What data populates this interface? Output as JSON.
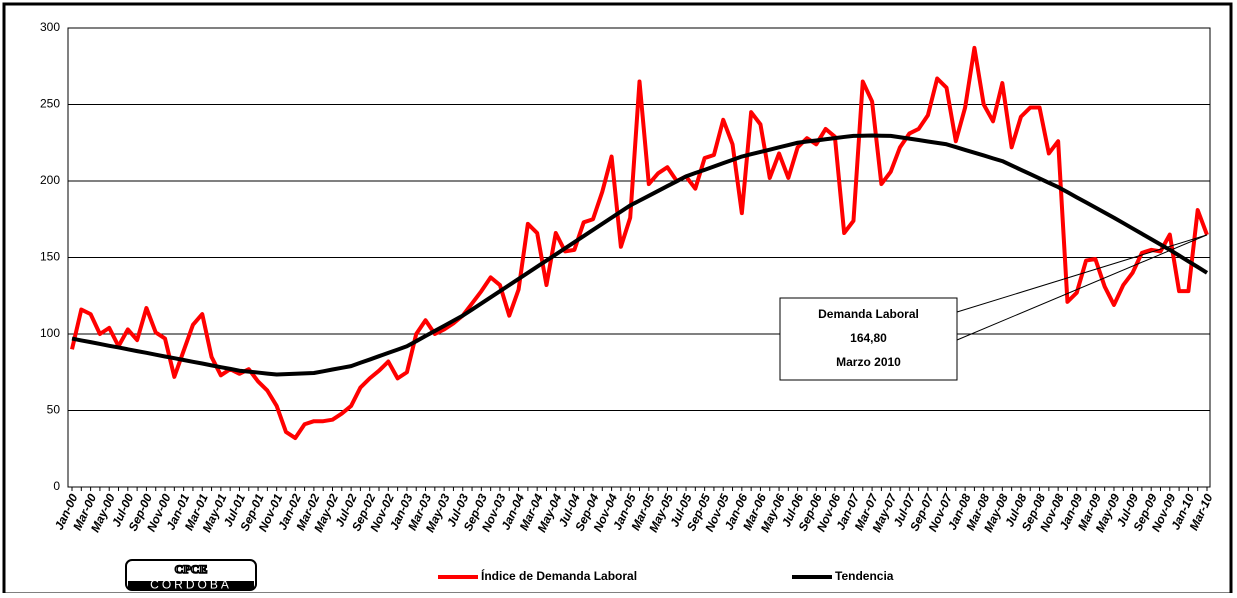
{
  "chart_data": {
    "type": "line",
    "categories": [
      "Jan-00",
      null,
      "Mar-00",
      null,
      "May-00",
      null,
      "Jul-00",
      null,
      "Sep-00",
      null,
      "Nov-00",
      null,
      "Jan-01",
      null,
      "Mar-01",
      null,
      "May-01",
      null,
      "Jul-01",
      null,
      "Sep-01",
      null,
      "Nov-01",
      null,
      "Jan-02",
      null,
      "Mar-02",
      null,
      "May-02",
      null,
      "Jul-02",
      null,
      "Sep-02",
      null,
      "Nov-02",
      null,
      "Jan-03",
      null,
      "Mar-03",
      null,
      "May-03",
      null,
      "Jul-03",
      null,
      "Sep-03",
      null,
      "Nov-03",
      null,
      "Jan-04",
      null,
      "Mar-04",
      null,
      "May-04",
      null,
      "Jul-04",
      null,
      "Sep-04",
      null,
      "Nov-04",
      null,
      "Jan-05",
      null,
      "Mar-05",
      null,
      "May-05",
      null,
      "Jul-05",
      null,
      "Sep-05",
      null,
      "Nov-05",
      null,
      "Jan-06",
      null,
      "Mar-06",
      null,
      "May-06",
      null,
      "Jul-06",
      null,
      "Sep-06",
      null,
      "Nov-06",
      null,
      "Jan-07",
      null,
      "Mar-07",
      null,
      "May-07",
      null,
      "Jul-07",
      null,
      "Sep-07",
      null,
      "Nov-07",
      null,
      "Jan-08",
      null,
      "Mar-08",
      null,
      "May-08",
      null,
      "Jul-08",
      null,
      "Sep-08",
      null,
      "Nov-08",
      null,
      "Jan-09",
      null,
      "Mar-09",
      null,
      "May-09",
      null,
      "Jul-09",
      null,
      "Sep-09",
      null,
      "Nov-09",
      null,
      "Jan-10",
      null,
      "Mar-10"
    ],
    "series": [
      {
        "name": "Índice de Demanda Laboral",
        "color": "#ff0000",
        "values": [
          90,
          116,
          113,
          100,
          104,
          92,
          103,
          96,
          117,
          101,
          97,
          72,
          89,
          106,
          113,
          85,
          73,
          77,
          74,
          77,
          69,
          63,
          53,
          36,
          32,
          41,
          43,
          43,
          44,
          48,
          53,
          65,
          71,
          76,
          82,
          71,
          75,
          100,
          109,
          100,
          103,
          107,
          112,
          120,
          128,
          137,
          132,
          112,
          129,
          172,
          166,
          132,
          166,
          154,
          155,
          173,
          175,
          193,
          216,
          157,
          176,
          265,
          198,
          205,
          209,
          200,
          203,
          195,
          215,
          217,
          240,
          224,
          179,
          245,
          237,
          202,
          218,
          202,
          222,
          228,
          224,
          234,
          229,
          166,
          174,
          265,
          252,
          198,
          206,
          222,
          231,
          234,
          243,
          267,
          261,
          226,
          248,
          287,
          250,
          239,
          264,
          222,
          242,
          248,
          248,
          218,
          226,
          121,
          127,
          148,
          149,
          131,
          119,
          132,
          140,
          153,
          155,
          154,
          165,
          128,
          128,
          181,
          164.8
        ]
      },
      {
        "name": "Tendencia",
        "color": "#000000",
        "values": [
          97,
          95.8,
          94.7,
          93.5,
          92.3,
          91.2,
          90,
          88.8,
          87.7,
          86.5,
          85.3,
          84.2,
          83,
          81.8,
          80.7,
          79.5,
          78.3,
          77.2,
          76,
          75.4,
          74.8,
          74.1,
          73.5,
          73.8,
          74,
          74.3,
          74.5,
          75.6,
          76.8,
          77.9,
          79,
          81.2,
          83.3,
          85.5,
          87.7,
          89.8,
          92,
          95.3,
          98.7,
          102,
          105.3,
          108.7,
          112,
          116,
          120,
          124,
          128,
          132,
          136,
          140,
          144,
          148,
          152,
          156,
          160,
          164,
          168,
          172,
          176,
          180,
          184,
          187.2,
          190.3,
          193.5,
          196.7,
          199.8,
          203,
          205.2,
          207.3,
          209.5,
          211.7,
          213.8,
          216,
          217.5,
          219,
          220.5,
          222,
          223.5,
          225,
          225.8,
          226.5,
          227.3,
          228,
          228.8,
          229.5,
          229.6,
          229.7,
          229.6,
          229.5,
          228.6,
          227.7,
          226.8,
          225.8,
          224.9,
          224,
          222.2,
          220.3,
          218.5,
          216.7,
          214.8,
          213,
          210.2,
          207.3,
          204.5,
          201.7,
          198.8,
          196,
          192.7,
          189.3,
          186,
          182.7,
          179.3,
          176,
          172.5,
          169,
          165.5,
          162,
          158.5,
          155,
          151.3,
          147.5,
          143.8,
          140
        ]
      }
    ],
    "ylim": [
      0,
      300
    ],
    "yticks": [
      0,
      50,
      100,
      150,
      200,
      250,
      300
    ],
    "grid": true,
    "annotation": {
      "lines": [
        "Demanda Laboral",
        "164,80",
        "Marzo 2010"
      ]
    },
    "logo": {
      "title": "CPCE",
      "subtitle": "CORDOBA"
    }
  }
}
